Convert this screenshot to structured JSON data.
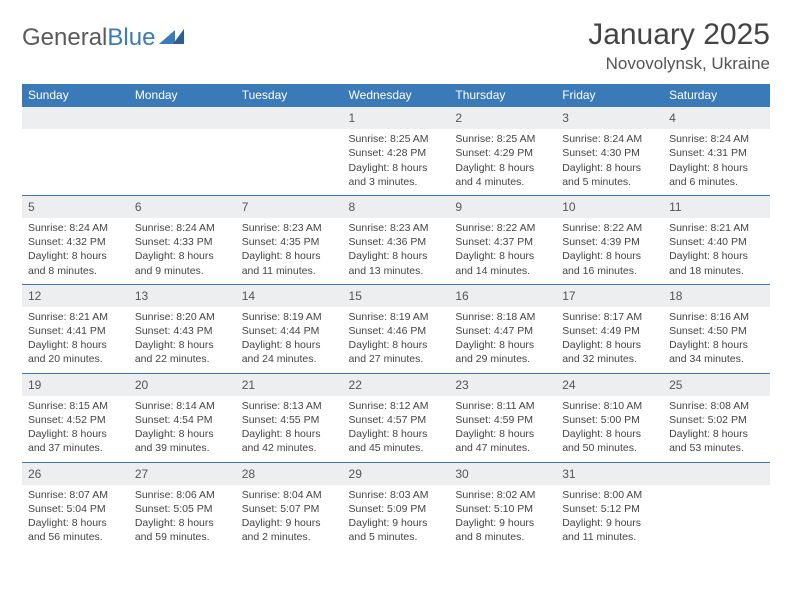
{
  "logo": {
    "text1": "General",
    "text2": "Blue"
  },
  "header": {
    "title": "January 2025",
    "location": "Novovolynsk, Ukraine"
  },
  "colors": {
    "header_bg": "#3a7ab8",
    "header_fg": "#ffffff",
    "daynum_bg": "#eceeef",
    "border": "#3a7ab8",
    "text": "#444444"
  },
  "weekdays": [
    "Sunday",
    "Monday",
    "Tuesday",
    "Wednesday",
    "Thursday",
    "Friday",
    "Saturday"
  ],
  "weeks": [
    [
      null,
      null,
      null,
      {
        "n": "1",
        "sr": "8:25 AM",
        "ss": "4:28 PM",
        "dl": "8 hours and 3 minutes."
      },
      {
        "n": "2",
        "sr": "8:25 AM",
        "ss": "4:29 PM",
        "dl": "8 hours and 4 minutes."
      },
      {
        "n": "3",
        "sr": "8:24 AM",
        "ss": "4:30 PM",
        "dl": "8 hours and 5 minutes."
      },
      {
        "n": "4",
        "sr": "8:24 AM",
        "ss": "4:31 PM",
        "dl": "8 hours and 6 minutes."
      }
    ],
    [
      {
        "n": "5",
        "sr": "8:24 AM",
        "ss": "4:32 PM",
        "dl": "8 hours and 8 minutes."
      },
      {
        "n": "6",
        "sr": "8:24 AM",
        "ss": "4:33 PM",
        "dl": "8 hours and 9 minutes."
      },
      {
        "n": "7",
        "sr": "8:23 AM",
        "ss": "4:35 PM",
        "dl": "8 hours and 11 minutes."
      },
      {
        "n": "8",
        "sr": "8:23 AM",
        "ss": "4:36 PM",
        "dl": "8 hours and 13 minutes."
      },
      {
        "n": "9",
        "sr": "8:22 AM",
        "ss": "4:37 PM",
        "dl": "8 hours and 14 minutes."
      },
      {
        "n": "10",
        "sr": "8:22 AM",
        "ss": "4:39 PM",
        "dl": "8 hours and 16 minutes."
      },
      {
        "n": "11",
        "sr": "8:21 AM",
        "ss": "4:40 PM",
        "dl": "8 hours and 18 minutes."
      }
    ],
    [
      {
        "n": "12",
        "sr": "8:21 AM",
        "ss": "4:41 PM",
        "dl": "8 hours and 20 minutes."
      },
      {
        "n": "13",
        "sr": "8:20 AM",
        "ss": "4:43 PM",
        "dl": "8 hours and 22 minutes."
      },
      {
        "n": "14",
        "sr": "8:19 AM",
        "ss": "4:44 PM",
        "dl": "8 hours and 24 minutes."
      },
      {
        "n": "15",
        "sr": "8:19 AM",
        "ss": "4:46 PM",
        "dl": "8 hours and 27 minutes."
      },
      {
        "n": "16",
        "sr": "8:18 AM",
        "ss": "4:47 PM",
        "dl": "8 hours and 29 minutes."
      },
      {
        "n": "17",
        "sr": "8:17 AM",
        "ss": "4:49 PM",
        "dl": "8 hours and 32 minutes."
      },
      {
        "n": "18",
        "sr": "8:16 AM",
        "ss": "4:50 PM",
        "dl": "8 hours and 34 minutes."
      }
    ],
    [
      {
        "n": "19",
        "sr": "8:15 AM",
        "ss": "4:52 PM",
        "dl": "8 hours and 37 minutes."
      },
      {
        "n": "20",
        "sr": "8:14 AM",
        "ss": "4:54 PM",
        "dl": "8 hours and 39 minutes."
      },
      {
        "n": "21",
        "sr": "8:13 AM",
        "ss": "4:55 PM",
        "dl": "8 hours and 42 minutes."
      },
      {
        "n": "22",
        "sr": "8:12 AM",
        "ss": "4:57 PM",
        "dl": "8 hours and 45 minutes."
      },
      {
        "n": "23",
        "sr": "8:11 AM",
        "ss": "4:59 PM",
        "dl": "8 hours and 47 minutes."
      },
      {
        "n": "24",
        "sr": "8:10 AM",
        "ss": "5:00 PM",
        "dl": "8 hours and 50 minutes."
      },
      {
        "n": "25",
        "sr": "8:08 AM",
        "ss": "5:02 PM",
        "dl": "8 hours and 53 minutes."
      }
    ],
    [
      {
        "n": "26",
        "sr": "8:07 AM",
        "ss": "5:04 PM",
        "dl": "8 hours and 56 minutes."
      },
      {
        "n": "27",
        "sr": "8:06 AM",
        "ss": "5:05 PM",
        "dl": "8 hours and 59 minutes."
      },
      {
        "n": "28",
        "sr": "8:04 AM",
        "ss": "5:07 PM",
        "dl": "9 hours and 2 minutes."
      },
      {
        "n": "29",
        "sr": "8:03 AM",
        "ss": "5:09 PM",
        "dl": "9 hours and 5 minutes."
      },
      {
        "n": "30",
        "sr": "8:02 AM",
        "ss": "5:10 PM",
        "dl": "9 hours and 8 minutes."
      },
      {
        "n": "31",
        "sr": "8:00 AM",
        "ss": "5:12 PM",
        "dl": "9 hours and 11 minutes."
      },
      null
    ]
  ],
  "labels": {
    "sunrise": "Sunrise:",
    "sunset": "Sunset:",
    "daylight": "Daylight:"
  }
}
